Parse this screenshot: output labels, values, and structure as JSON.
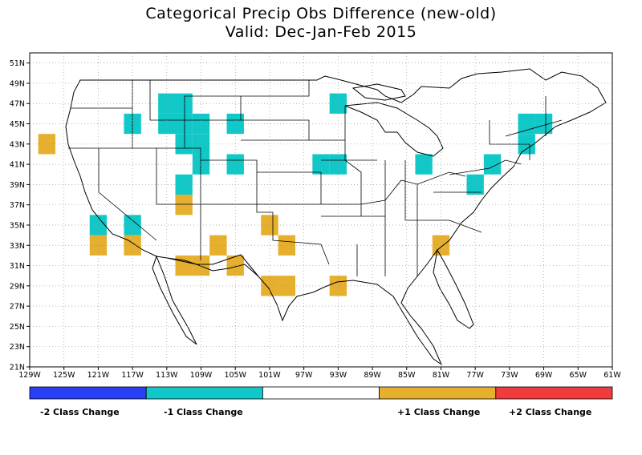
{
  "title": {
    "line1": "Categorical Precip Obs Difference (new-old)",
    "line2": "Valid: Dec-Jan-Feb 2015"
  },
  "axes": {
    "lon_ticks": [
      "129W",
      "125W",
      "121W",
      "117W",
      "113W",
      "109W",
      "105W",
      "101W",
      "97W",
      "93W",
      "89W",
      "85W",
      "81W",
      "77W",
      "73W",
      "69W",
      "65W",
      "61W"
    ],
    "lat_ticks": [
      "51N",
      "49N",
      "47N",
      "45N",
      "43N",
      "41N",
      "39N",
      "37N",
      "35N",
      "33N",
      "31N",
      "29N",
      "27N",
      "25N",
      "23N",
      "21N"
    ],
    "lon_range": [
      -129,
      -61
    ],
    "lat_range": [
      21,
      52
    ]
  },
  "legend": {
    "items": [
      {
        "label": "-2 Class Change",
        "color": "#2a3ef5"
      },
      {
        "label": "-1 Class Change",
        "color": "#10c8c8"
      },
      {
        "label": "",
        "color": "#ffffff"
      },
      {
        "label": "+1 Class Change",
        "color": "#e6af2d"
      },
      {
        "label": "+2 Class Change",
        "color": "#f03c3c"
      }
    ]
  },
  "colors": {
    "minus1": "#10c8c8",
    "plus1": "#e6af2d"
  },
  "cells": [
    {
      "lon": -117,
      "lat": 45,
      "v": -1
    },
    {
      "lon": -113,
      "lat": 47,
      "v": -1
    },
    {
      "lon": -111,
      "lat": 47,
      "v": -1
    },
    {
      "lon": -113,
      "lat": 45,
      "v": -1
    },
    {
      "lon": -111,
      "lat": 45,
      "v": -1
    },
    {
      "lon": -109,
      "lat": 45,
      "v": -1
    },
    {
      "lon": -111,
      "lat": 43,
      "v": -1
    },
    {
      "lon": -109,
      "lat": 43,
      "v": -1
    },
    {
      "lon": -109,
      "lat": 41,
      "v": -1
    },
    {
      "lon": -105,
      "lat": 45,
      "v": -1
    },
    {
      "lon": -105,
      "lat": 41,
      "v": -1
    },
    {
      "lon": -111,
      "lat": 39,
      "v": -1
    },
    {
      "lon": -121,
      "lat": 35,
      "v": -1
    },
    {
      "lon": -117,
      "lat": 35,
      "v": -1
    },
    {
      "lon": -93,
      "lat": 47,
      "v": -1
    },
    {
      "lon": -95,
      "lat": 41,
      "v": -1
    },
    {
      "lon": -93,
      "lat": 41,
      "v": -1
    },
    {
      "lon": -83,
      "lat": 41,
      "v": -1
    },
    {
      "lon": -75,
      "lat": 41,
      "v": -1
    },
    {
      "lon": -77,
      "lat": 39,
      "v": -1
    },
    {
      "lon": -71,
      "lat": 43,
      "v": -1
    },
    {
      "lon": -71,
      "lat": 45,
      "v": -1
    },
    {
      "lon": -69,
      "lat": 45,
      "v": -1
    },
    {
      "lon": -127,
      "lat": 43,
      "v": 1
    },
    {
      "lon": -111,
      "lat": 37,
      "v": 1
    },
    {
      "lon": -121,
      "lat": 33,
      "v": 1
    },
    {
      "lon": -117,
      "lat": 33,
      "v": 1
    },
    {
      "lon": -111,
      "lat": 31,
      "v": 1
    },
    {
      "lon": -109,
      "lat": 31,
      "v": 1
    },
    {
      "lon": -107,
      "lat": 33,
      "v": 1
    },
    {
      "lon": -105,
      "lat": 31,
      "v": 1
    },
    {
      "lon": -101,
      "lat": 35,
      "v": 1
    },
    {
      "lon": -99,
      "lat": 33,
      "v": 1
    },
    {
      "lon": -101,
      "lat": 29,
      "v": 1
    },
    {
      "lon": -99,
      "lat": 29,
      "v": 1
    },
    {
      "lon": -93,
      "lat": 29,
      "v": 1
    },
    {
      "lon": -81,
      "lat": 33,
      "v": 1
    }
  ]
}
